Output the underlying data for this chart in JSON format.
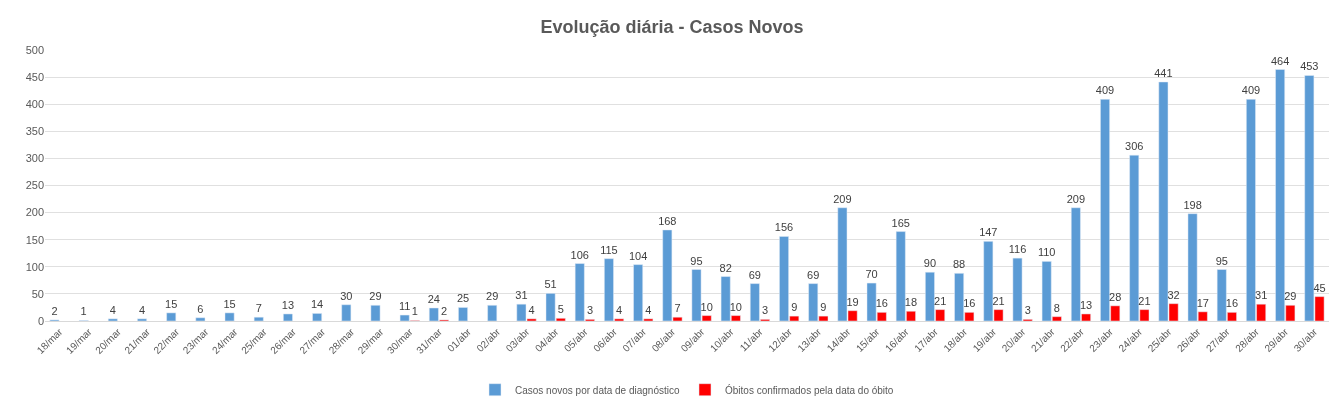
{
  "chart_data": {
    "type": "bar",
    "title": "Evolução diária - Casos Novos",
    "categories": [
      "18/mar",
      "19/mar",
      "20/mar",
      "21/mar",
      "22/mar",
      "23/mar",
      "24/mar",
      "25/mar",
      "26/mar",
      "27/mar",
      "28/mar",
      "29/mar",
      "30/mar",
      "31/mar",
      "01/abr",
      "02/abr",
      "03/abr",
      "04/abr",
      "05/abr",
      "06/abr",
      "07/abr",
      "08/abr",
      "09/abr",
      "10/abr",
      "11/abr",
      "12/abr",
      "13/abr",
      "14/abr",
      "15/abr",
      "16/abr",
      "17/abr",
      "18/abr",
      "19/abr",
      "20/abr",
      "21/abr",
      "22/abr",
      "23/abr",
      "24/abr",
      "25/abr",
      "26/abr",
      "27/abr",
      "28/abr",
      "29/abr",
      "30/abr"
    ],
    "series": [
      {
        "name": "Casos novos por data de diagnóstico",
        "color": "#5b9bd5",
        "values": [
          2,
          1,
          4,
          4,
          15,
          6,
          15,
          7,
          13,
          14,
          30,
          29,
          11,
          24,
          25,
          29,
          31,
          51,
          106,
          115,
          104,
          168,
          95,
          82,
          69,
          156,
          69,
          209,
          70,
          165,
          90,
          88,
          147,
          116,
          110,
          209,
          409,
          306,
          441,
          198,
          95,
          409,
          464,
          453
        ]
      },
      {
        "name": "Óbitos confirmados pela data do óbito",
        "color": "#ff0000",
        "values": [
          null,
          null,
          null,
          null,
          null,
          null,
          null,
          null,
          null,
          null,
          null,
          null,
          1,
          2,
          null,
          null,
          4,
          5,
          3,
          4,
          4,
          7,
          10,
          10,
          3,
          9,
          9,
          19,
          16,
          18,
          21,
          16,
          21,
          3,
          8,
          13,
          28,
          21,
          32,
          17,
          16,
          31,
          29,
          45
        ]
      }
    ],
    "ylim": [
      0,
      500
    ],
    "yticks": [
      0,
      50,
      100,
      150,
      200,
      250,
      300,
      350,
      400,
      450,
      500
    ],
    "grid": "y",
    "legend": "bottom",
    "data_labels": true
  }
}
